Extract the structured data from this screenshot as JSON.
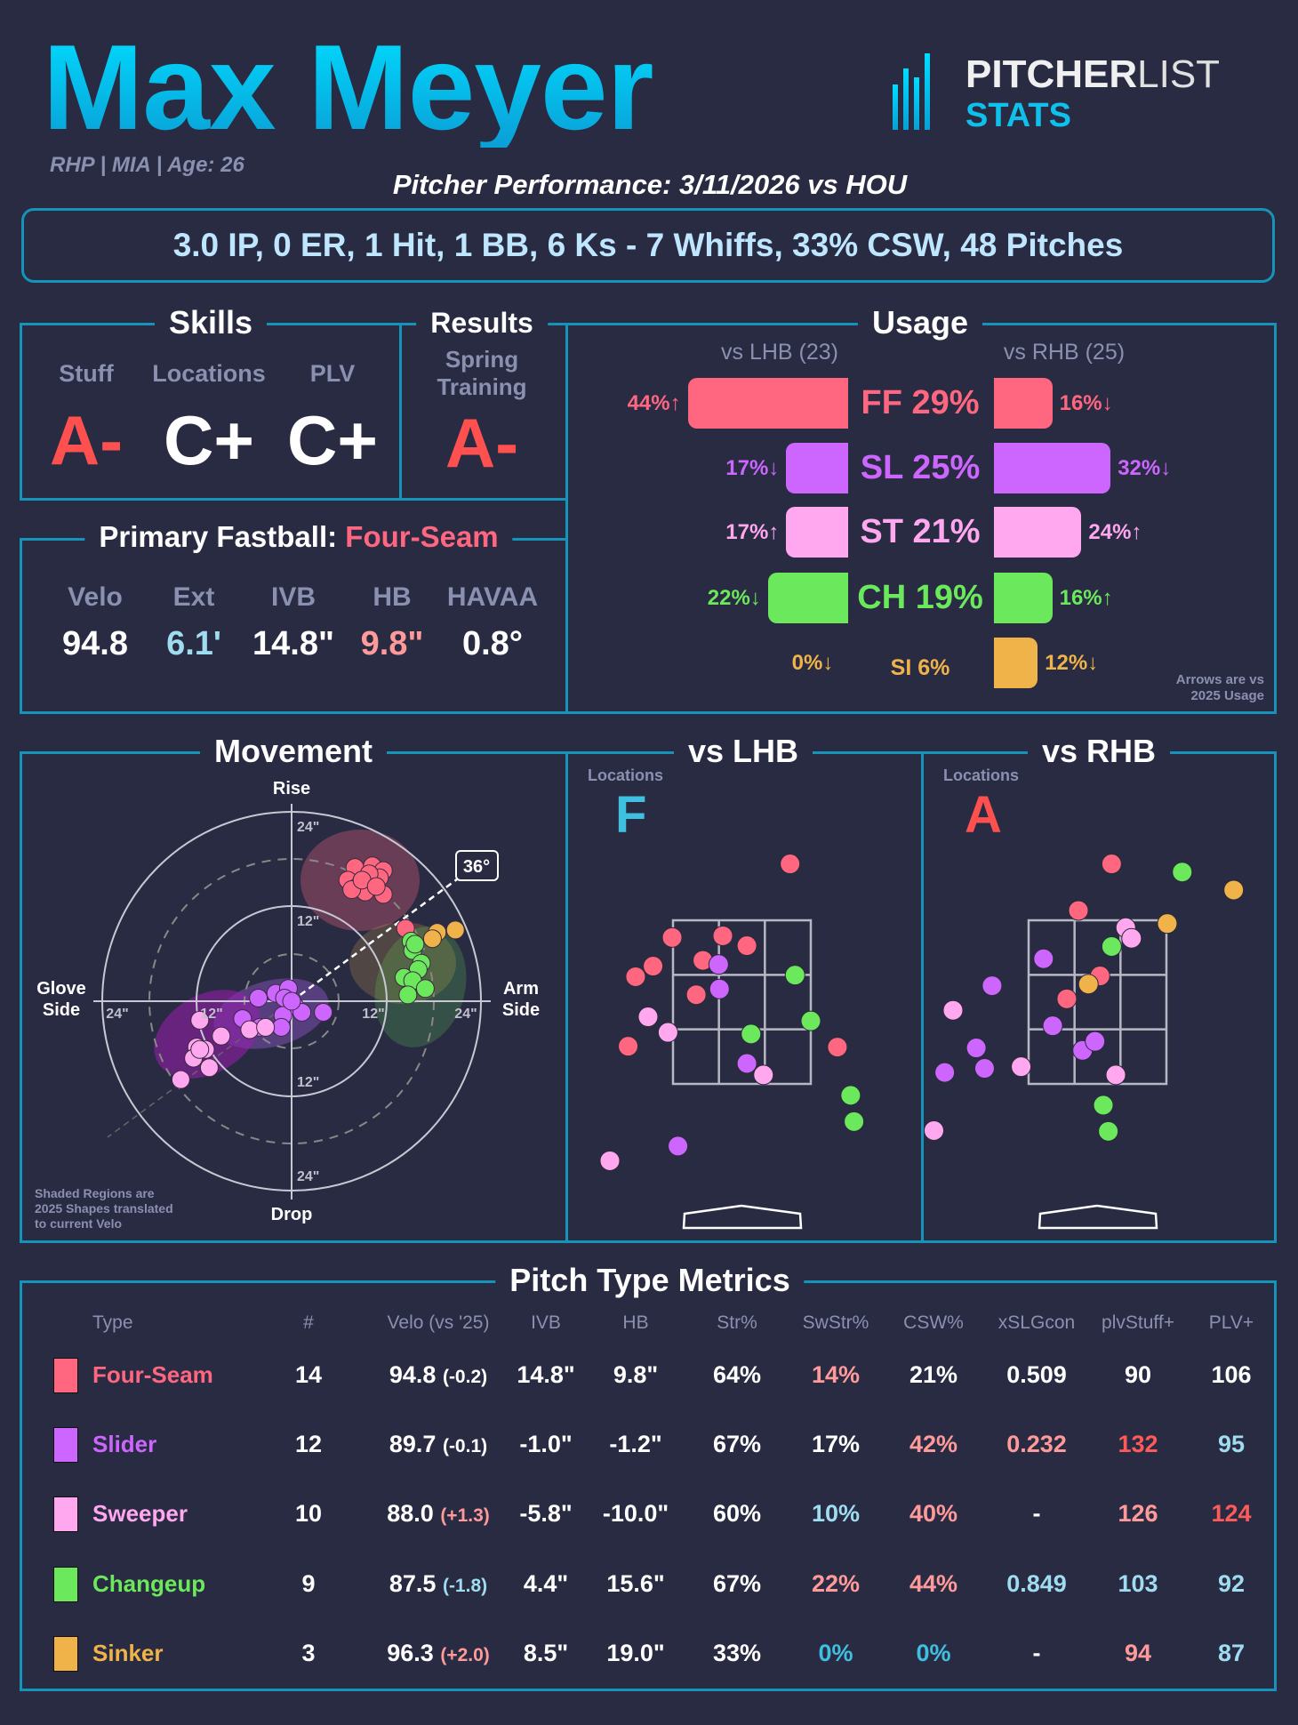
{
  "header": {
    "player_name": "Max Meyer",
    "player_info": "RHP | MIA | Age: 26",
    "performance_title": "Pitcher Performance: 3/11/2026 vs HOU",
    "summary": "3.0 IP, 0 ER, 1 Hit, 1 BB, 6 Ks - 7 Whiffs, 33% CSW, 48 Pitches",
    "logo": {
      "word1": "PITCHER",
      "word2": "LIST",
      "word3": "STATS"
    }
  },
  "colors": {
    "FF": "#ff6680",
    "SL": "#cc66ff",
    "ST": "#ffa8f0",
    "CH": "#6be85c",
    "SI": "#f0b34a",
    "w": "#ffffff",
    "r": "#ff5a5a",
    "s": "#ff9a9a",
    "b": "#9fdcf0",
    "c": "#3fc0e0",
    "border": "#1593b8"
  },
  "skills": {
    "title": "Skills",
    "items": [
      {
        "label": "Stuff",
        "grade": "A-",
        "color": "#ff5050"
      },
      {
        "label": "Locations",
        "grade": "C+",
        "color": "#ffffff"
      },
      {
        "label": "PLV",
        "grade": "C+",
        "color": "#ffffff"
      }
    ]
  },
  "results": {
    "title": "Results",
    "label1": "Spring",
    "label2": "Training",
    "grade": "A-"
  },
  "fastball": {
    "title": "Primary Fastball:",
    "pitch": "Four-Seam",
    "metrics": [
      {
        "label": "Velo",
        "value": "94.8",
        "color": "#ffffff"
      },
      {
        "label": "Ext",
        "value": "6.1'",
        "color": "#9fdcf0"
      },
      {
        "label": "IVB",
        "value": "14.8\"",
        "color": "#ffffff"
      },
      {
        "label": "HB",
        "value": "9.8\"",
        "color": "#ff9a9a"
      },
      {
        "label": "HAVAA",
        "value": "0.8°",
        "color": "#ffffff"
      }
    ]
  },
  "usage": {
    "title": "Usage",
    "lhb_header": "vs LHB (23)",
    "rhb_header": "vs RHB (25)",
    "note1": "Arrows are vs",
    "note2": "2025 Usage",
    "rows": [
      {
        "code": "FF",
        "total": "FF 29%",
        "lhb": 44,
        "lhb_label": "44%↑",
        "rhb": 16,
        "rhb_label": "16%↓"
      },
      {
        "code": "SL",
        "total": "SL 25%",
        "lhb": 17,
        "lhb_label": "17%↓",
        "rhb": 32,
        "rhb_label": "32%↓"
      },
      {
        "code": "ST",
        "total": "ST 21%",
        "lhb": 17,
        "lhb_label": "17%↑",
        "rhb": 24,
        "rhb_label": "24%↑"
      },
      {
        "code": "CH",
        "total": "CH 19%",
        "lhb": 22,
        "lhb_label": "22%↓",
        "rhb": 16,
        "rhb_label": "16%↑"
      },
      {
        "code": "SI",
        "total": "SI 6%",
        "lhb": 0,
        "lhb_label": "0%↓",
        "rhb": 12,
        "rhb_label": "12%↓"
      }
    ]
  },
  "movement": {
    "title": "Movement",
    "rise": "Rise",
    "drop": "Drop",
    "glove1": "Glove",
    "glove2": "Side",
    "arm1": "Arm",
    "arm2": "Side",
    "ticks": {
      "t24": "24\"",
      "t12": "12\"",
      "b12": "12\"",
      "b24": "24\"",
      "l24": "24\"",
      "l12": "12\"",
      "r12": "12\"",
      "r24": "24\""
    },
    "arm_angle": "36°",
    "note1": "Shaded Regions are",
    "note2": "2025 Shapes translated",
    "note3": "to current Velo"
  },
  "lhb": {
    "title": "vs LHB",
    "label": "Locations",
    "grade": "F",
    "grade_color": "#3fc0e0"
  },
  "rhb": {
    "title": "vs RHB",
    "label": "Locations",
    "grade": "A",
    "grade_color": "#ff5050"
  },
  "chart_data": [
    {
      "type": "scatter",
      "title": "Movement",
      "xlabel": "HB (in, arm side +)",
      "ylabel": "IVB (in)",
      "xlim": [
        -24,
        24
      ],
      "ylim": [
        -24,
        24
      ],
      "series": [
        {
          "name": "FF",
          "points": [
            [
              8.0,
              16.9
            ],
            [
              10.2,
              17.1
            ],
            [
              11.6,
              16.5
            ],
            [
              7.1,
              15.3
            ],
            [
              8.4,
              14.5
            ],
            [
              10.2,
              14.8
            ],
            [
              11.6,
              13.5
            ],
            [
              9.3,
              13.8
            ],
            [
              11.1,
              15.6
            ],
            [
              7.6,
              14.1
            ],
            [
              9.8,
              16.1
            ],
            [
              8.9,
              15.3
            ],
            [
              10.7,
              14.5
            ],
            [
              14.4,
              9.2
            ]
          ]
        },
        {
          "name": "SL",
          "points": [
            [
              -4.2,
              0.4
            ],
            [
              -2.0,
              1.0
            ],
            [
              -0.4,
              1.6
            ],
            [
              -0.9,
              0.4
            ],
            [
              0.4,
              -0.6
            ],
            [
              1.3,
              -1.4
            ],
            [
              4.0,
              -1.4
            ],
            [
              -1.1,
              -1.8
            ],
            [
              -6.2,
              -2.2
            ],
            [
              -1.3,
              -3.3
            ],
            [
              -4.0,
              -3.3
            ],
            [
              0,
              0
            ]
          ]
        },
        {
          "name": "ST",
          "points": [
            [
              -11.6,
              -2.4
            ],
            [
              -8.9,
              -4.4
            ],
            [
              -12.0,
              -5.8
            ],
            [
              -10.9,
              -6.1
            ],
            [
              -12.4,
              -7.2
            ],
            [
              -10.4,
              -8.4
            ],
            [
              -14.0,
              -9.9
            ],
            [
              -5.3,
              -3.6
            ],
            [
              -3.3,
              -3.3
            ],
            [
              -11.6,
              -6.1
            ]
          ]
        },
        {
          "name": "CH",
          "points": [
            [
              15.1,
              7.6
            ],
            [
              15.3,
              6.4
            ],
            [
              16.4,
              4.8
            ],
            [
              16.0,
              4.0
            ],
            [
              14.2,
              3.0
            ],
            [
              15.3,
              2.6
            ],
            [
              16.9,
              1.6
            ],
            [
              14.7,
              0.8
            ],
            [
              15.6,
              7.2
            ]
          ]
        },
        {
          "name": "SI",
          "points": [
            [
              20.7,
              9.0
            ],
            [
              18.4,
              8.7
            ],
            [
              17.8,
              7.9
            ]
          ]
        }
      ]
    },
    {
      "type": "scatter",
      "title": "vs LHB Locations",
      "xlabel": "plate x (ft)",
      "ylabel": "plate z (ft)",
      "series": [
        {
          "name": "FF",
          "points": [
            [
              0.58,
              4.19
            ],
            [
              -0.84,
              3.29
            ],
            [
              -0.23,
              3.31
            ],
            [
              0.06,
              3.19
            ],
            [
              -1.07,
              2.94
            ],
            [
              -1.28,
              2.81
            ],
            [
              -0.47,
              3.01
            ],
            [
              -0.55,
              2.59
            ],
            [
              -1.37,
              1.96
            ],
            [
              1.15,
              1.95
            ]
          ]
        },
        {
          "name": "SL",
          "points": [
            [
              -0.28,
              2.96
            ],
            [
              -0.27,
              2.66
            ],
            [
              0.06,
              1.75
            ],
            [
              -0.77,
              0.74
            ]
          ]
        },
        {
          "name": "ST",
          "points": [
            [
              -1.13,
              2.32
            ],
            [
              -0.89,
              2.13
            ],
            [
              0.26,
              1.61
            ],
            [
              -1.59,
              0.56
            ]
          ]
        },
        {
          "name": "CH",
          "points": [
            [
              0.64,
              2.83
            ],
            [
              0.83,
              2.27
            ],
            [
              0.11,
              2.11
            ],
            [
              1.31,
              1.36
            ],
            [
              1.35,
              1.04
            ]
          ]
        }
      ]
    },
    {
      "type": "scatter",
      "title": "vs RHB Locations",
      "xlabel": "plate x (ft)",
      "ylabel": "plate z (ft)",
      "series": [
        {
          "name": "FF",
          "points": [
            [
              0.17,
              4.19
            ],
            [
              -0.23,
              3.62
            ],
            [
              0.03,
              2.82
            ],
            [
              -0.37,
              2.54
            ]
          ]
        },
        {
          "name": "SL",
          "points": [
            [
              -0.65,
              3.03
            ],
            [
              -1.27,
              2.7
            ],
            [
              -0.54,
              2.21
            ],
            [
              -1.46,
              1.94
            ],
            [
              -1.36,
              1.69
            ],
            [
              -1.84,
              1.64
            ],
            [
              -0.18,
              1.91
            ],
            [
              -0.03,
              2.02
            ]
          ]
        },
        {
          "name": "ST",
          "points": [
            [
              0.34,
              3.41
            ],
            [
              0.41,
              3.28
            ],
            [
              -1.74,
              2.4
            ],
            [
              -0.92,
              1.71
            ],
            [
              0.22,
              1.61
            ],
            [
              -1.97,
              0.93
            ]
          ]
        },
        {
          "name": "CH",
          "points": [
            [
              1.02,
              4.09
            ],
            [
              0.17,
              3.18
            ],
            [
              0.07,
              1.24
            ],
            [
              0.13,
              0.92
            ]
          ]
        },
        {
          "name": "SI",
          "points": [
            [
              1.64,
              3.87
            ],
            [
              0.84,
              3.46
            ],
            [
              -0.11,
              2.72
            ]
          ]
        }
      ]
    }
  ],
  "metrics": {
    "title": "Pitch Type Metrics",
    "headers": [
      "Type",
      "#",
      "Velo (vs '25)",
      "IVB",
      "HB",
      "Str%",
      "SwStr%",
      "CSW%",
      "xSLGcon",
      "plvStuff+",
      "PLV+"
    ],
    "rows": [
      {
        "code": "FF",
        "name": "Four-Seam",
        "cells": [
          {
            "v": "14",
            "c": "w"
          },
          {
            "v": "94.8",
            "d": "(-0.2)",
            "dc": "w",
            "c": "w"
          },
          {
            "v": "14.8\"",
            "c": "w"
          },
          {
            "v": "9.8\"",
            "c": "w"
          },
          {
            "v": "64%",
            "c": "w"
          },
          {
            "v": "14%",
            "c": "s"
          },
          {
            "v": "21%",
            "c": "w"
          },
          {
            "v": "0.509",
            "c": "w"
          },
          {
            "v": "90",
            "c": "w"
          },
          {
            "v": "106",
            "c": "w"
          }
        ]
      },
      {
        "code": "SL",
        "name": "Slider",
        "cells": [
          {
            "v": "12",
            "c": "w"
          },
          {
            "v": "89.7",
            "d": "(-0.1)",
            "dc": "w",
            "c": "w"
          },
          {
            "v": "-1.0\"",
            "c": "w"
          },
          {
            "v": "-1.2\"",
            "c": "w"
          },
          {
            "v": "67%",
            "c": "w"
          },
          {
            "v": "17%",
            "c": "w"
          },
          {
            "v": "42%",
            "c": "s"
          },
          {
            "v": "0.232",
            "c": "s"
          },
          {
            "v": "132",
            "c": "r"
          },
          {
            "v": "95",
            "c": "b"
          }
        ]
      },
      {
        "code": "ST",
        "name": "Sweeper",
        "cells": [
          {
            "v": "10",
            "c": "w"
          },
          {
            "v": "88.0",
            "d": "(+1.3)",
            "dc": "s",
            "c": "w"
          },
          {
            "v": "-5.8\"",
            "c": "w"
          },
          {
            "v": "-10.0\"",
            "c": "w"
          },
          {
            "v": "60%",
            "c": "w"
          },
          {
            "v": "10%",
            "c": "b"
          },
          {
            "v": "40%",
            "c": "s"
          },
          {
            "v": "-",
            "c": "w"
          },
          {
            "v": "126",
            "c": "s"
          },
          {
            "v": "124",
            "c": "r"
          }
        ]
      },
      {
        "code": "CH",
        "name": "Changeup",
        "cells": [
          {
            "v": "9",
            "c": "w"
          },
          {
            "v": "87.5",
            "d": "(-1.8)",
            "dc": "b",
            "c": "w"
          },
          {
            "v": "4.4\"",
            "c": "w"
          },
          {
            "v": "15.6\"",
            "c": "w"
          },
          {
            "v": "67%",
            "c": "w"
          },
          {
            "v": "22%",
            "c": "s"
          },
          {
            "v": "44%",
            "c": "s"
          },
          {
            "v": "0.849",
            "c": "b"
          },
          {
            "v": "103",
            "c": "b"
          },
          {
            "v": "92",
            "c": "b"
          }
        ]
      },
      {
        "code": "SI",
        "name": "Sinker",
        "cells": [
          {
            "v": "3",
            "c": "w"
          },
          {
            "v": "96.3",
            "d": "(+2.0)",
            "dc": "s",
            "c": "w"
          },
          {
            "v": "8.5\"",
            "c": "w"
          },
          {
            "v": "19.0\"",
            "c": "w"
          },
          {
            "v": "33%",
            "c": "w"
          },
          {
            "v": "0%",
            "c": "c"
          },
          {
            "v": "0%",
            "c": "c"
          },
          {
            "v": "-",
            "c": "w"
          },
          {
            "v": "94",
            "c": "s"
          },
          {
            "v": "87",
            "c": "b"
          }
        ]
      }
    ]
  }
}
